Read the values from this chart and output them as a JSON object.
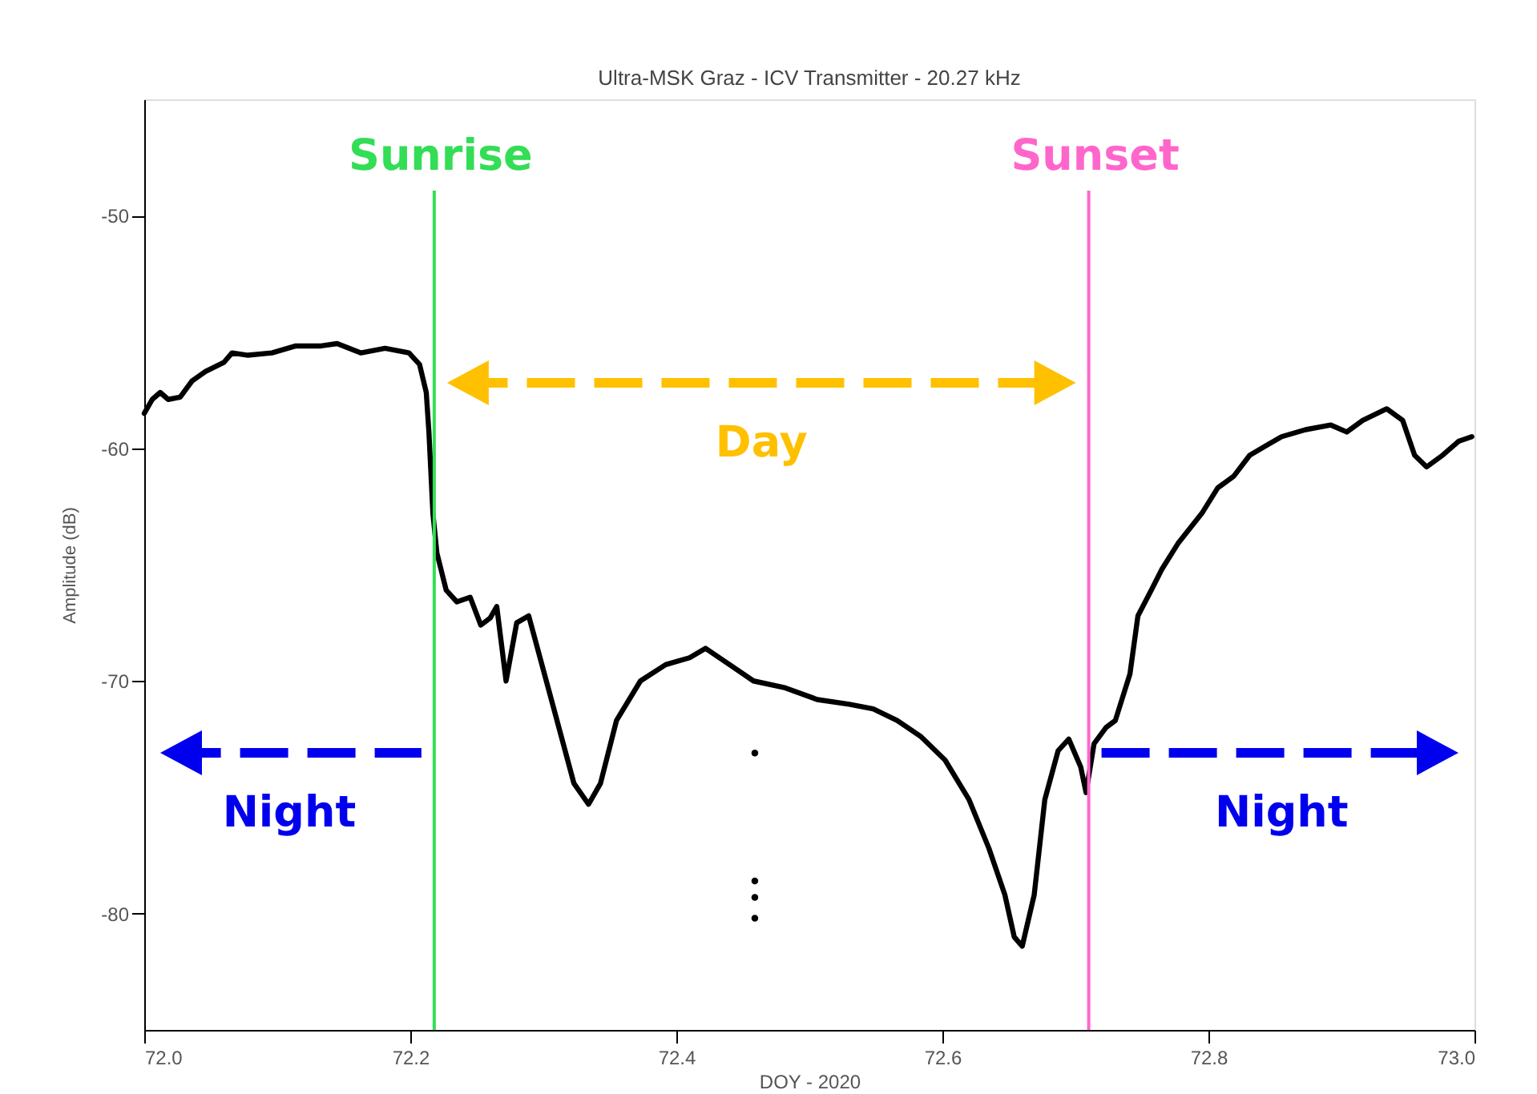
{
  "chart_data": {
    "type": "line",
    "title": "Ultra-MSK Graz -  ICV Transmitter - 20.27 kHz",
    "xlabel": "DOY - 2020",
    "ylabel": "Amplitude (dB)",
    "xlim": [
      72.0,
      73.0
    ],
    "ylim": [
      -85,
      -45
    ],
    "xticks": [
      {
        "value": 72.0,
        "label": "72.0"
      },
      72.2,
      72.4,
      72.6,
      72.8,
      {
        "value": 73.0,
        "label": "73.0"
      }
    ],
    "yticks": [
      -50,
      -60,
      -70,
      -80
    ],
    "grid": false,
    "series": [
      {
        "color": "#000000",
        "x": [
          72.0,
          72.006,
          72.012,
          72.018,
          72.027,
          72.036,
          72.046,
          72.06,
          72.066,
          72.078,
          72.096,
          72.114,
          72.133,
          72.145,
          72.163,
          72.181,
          72.199,
          72.207,
          72.212,
          72.214,
          72.217,
          72.22,
          72.227,
          72.235,
          72.245,
          72.253,
          72.26,
          72.265,
          72.272,
          72.28,
          72.289,
          72.307,
          72.323,
          72.334,
          72.343,
          72.355,
          72.373,
          72.392,
          72.41,
          72.422,
          72.44,
          72.458,
          72.482,
          72.506,
          72.53,
          72.548,
          72.566,
          72.584,
          72.602,
          72.62,
          72.635,
          72.647,
          72.654,
          72.66,
          72.669,
          72.677,
          72.687,
          72.695,
          72.704,
          72.708,
          72.714,
          72.723,
          72.73,
          72.741,
          72.747,
          72.757,
          72.765,
          72.777,
          72.795,
          72.807,
          72.819,
          72.831,
          72.843,
          72.855,
          72.873,
          72.892,
          72.904,
          72.916,
          72.934,
          72.946,
          72.955,
          72.964,
          72.976,
          72.988,
          72.998
        ],
        "values": [
          -58.5,
          -57.9,
          -57.6,
          -57.9,
          -57.8,
          -57.1,
          -56.7,
          -56.3,
          -55.9,
          -56.0,
          -55.9,
          -55.6,
          -55.6,
          -55.5,
          -55.9,
          -55.7,
          -55.9,
          -56.4,
          -57.6,
          -59.3,
          -62.8,
          -64.5,
          -66.1,
          -66.6,
          -66.4,
          -67.6,
          -67.3,
          -66.8,
          -70.0,
          -67.5,
          -67.2,
          -71.0,
          -74.4,
          -75.3,
          -74.4,
          -71.7,
          -70.0,
          -69.3,
          -69.0,
          -68.6,
          -69.3,
          -70.0,
          -70.3,
          -70.8,
          -71.0,
          -71.2,
          -71.7,
          -72.4,
          -73.4,
          -75.1,
          -77.2,
          -79.2,
          -81.0,
          -81.4,
          -79.2,
          -75.1,
          -73.0,
          -72.5,
          -73.7,
          -74.8,
          -72.7,
          -72.0,
          -71.7,
          -69.7,
          -67.2,
          -66.1,
          -65.2,
          -64.1,
          -62.8,
          -61.7,
          -61.2,
          -60.3,
          -59.9,
          -59.5,
          -59.2,
          -59.0,
          -59.3,
          -58.8,
          -58.3,
          -58.8,
          -60.3,
          -60.8,
          -60.3,
          -59.7,
          -59.5
        ]
      },
      {
        "type": "scatter",
        "color": "#000000",
        "marker": "circle",
        "x": [
          72.459,
          72.459,
          72.459,
          72.459
        ],
        "values": [
          -73.1,
          -78.6,
          -79.3,
          -80.2
        ]
      }
    ],
    "ref_lines": [
      {
        "axis": "x",
        "value": 72.218,
        "label": "Sunrise",
        "color": "#33dd55"
      },
      {
        "axis": "x",
        "value": 72.71,
        "label": "Sunset",
        "color": "#ff66cc"
      }
    ],
    "annotations": [
      "Night",
      "Day",
      "Night"
    ]
  }
}
